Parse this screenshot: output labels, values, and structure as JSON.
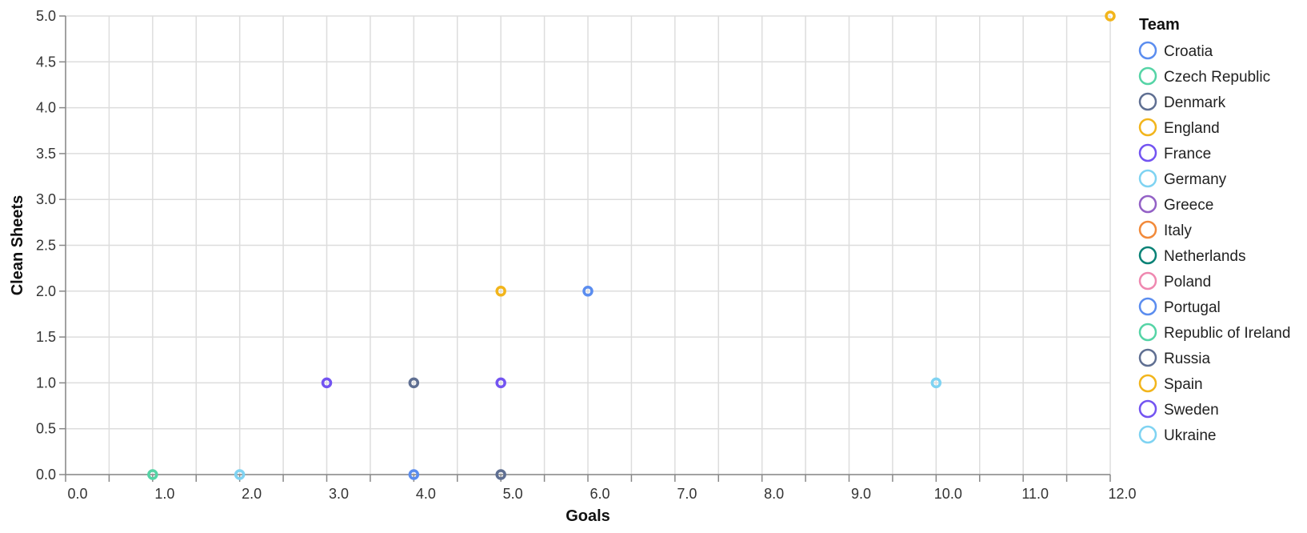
{
  "chart_data": {
    "type": "scatter",
    "xlabel": "Goals",
    "ylabel": "Clean Sheets",
    "xlim": [
      0,
      12
    ],
    "ylim": [
      0,
      5
    ],
    "x_ticks": [
      "0.0",
      "1.0",
      "2.0",
      "3.0",
      "4.0",
      "5.0",
      "6.0",
      "7.0",
      "8.0",
      "9.0",
      "10.0",
      "11.0",
      "12.0"
    ],
    "y_ticks": [
      "0.0",
      "0.5",
      "1.0",
      "1.5",
      "2.0",
      "2.5",
      "3.0",
      "3.5",
      "4.0",
      "4.5",
      "5.0"
    ],
    "grid": true,
    "legend": {
      "title": "Team",
      "placement": "right",
      "entries": [
        {
          "name": "Croatia",
          "color": "#5b8def"
        },
        {
          "name": "Czech Republic",
          "color": "#55d4a6"
        },
        {
          "name": "Denmark",
          "color": "#5f6f92"
        },
        {
          "name": "England",
          "color": "#f2b51c"
        },
        {
          "name": "France",
          "color": "#7354f1"
        },
        {
          "name": "Germany",
          "color": "#7fd3f2"
        },
        {
          "name": "Greece",
          "color": "#9361c6"
        },
        {
          "name": "Italy",
          "color": "#f28a3a"
        },
        {
          "name": "Netherlands",
          "color": "#0a8276"
        },
        {
          "name": "Poland",
          "color": "#ef88b0"
        },
        {
          "name": "Portugal",
          "color": "#5b8def"
        },
        {
          "name": "Republic of Ireland",
          "color": "#55d4a6"
        },
        {
          "name": "Russia",
          "color": "#5f6f92"
        },
        {
          "name": "Spain",
          "color": "#f2b51c"
        },
        {
          "name": "Sweden",
          "color": "#7354f1"
        },
        {
          "name": "Ukraine",
          "color": "#7fd3f2"
        }
      ]
    },
    "points": [
      {
        "x": 12,
        "y": 5,
        "color": "#f2b51c"
      },
      {
        "x": 5,
        "y": 2,
        "color": "#f2b51c"
      },
      {
        "x": 6,
        "y": 2,
        "color": "#5b8def"
      },
      {
        "x": 3,
        "y": 1,
        "color": "#7354f1"
      },
      {
        "x": 4,
        "y": 1,
        "color": "#5f6f92"
      },
      {
        "x": 5,
        "y": 1,
        "color": "#7354f1"
      },
      {
        "x": 10,
        "y": 1,
        "color": "#7fd3f2"
      },
      {
        "x": 1,
        "y": 0,
        "color": "#55d4a6"
      },
      {
        "x": 2,
        "y": 0,
        "color": "#7fd3f2"
      },
      {
        "x": 4,
        "y": 0,
        "color": "#5b8def"
      },
      {
        "x": 5,
        "y": 0,
        "color": "#5f6f92"
      }
    ]
  }
}
